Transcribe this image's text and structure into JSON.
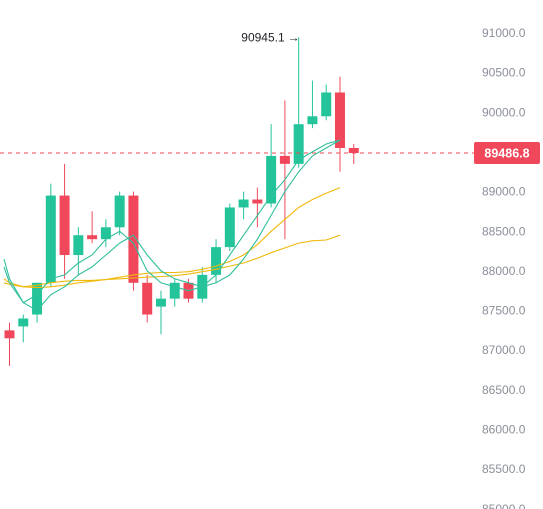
{
  "chart_data": {
    "type": "candlestick",
    "y_axis": {
      "position": "right",
      "ylim": [
        85000,
        91300
      ],
      "ticks": [
        "91000.0",
        "90500.0",
        "90000.0",
        "89500.0",
        "89000.0",
        "88500.0",
        "88000.0",
        "87500.0",
        "87000.0",
        "86500.0",
        "86000.0",
        "85500.0",
        "85000.0"
      ],
      "tick_values": [
        91000,
        90500,
        90000,
        89500,
        89000,
        88500,
        88000,
        87500,
        87000,
        86500,
        86000,
        85500,
        85000
      ]
    },
    "current_price": {
      "value": 89486.8,
      "label": "89486.8",
      "color": "#f0485a"
    },
    "high_marker": {
      "value": 90945.1,
      "label": "90945.1",
      "arrow": "→"
    },
    "colors": {
      "up": "#23c49a",
      "down": "#f0485a",
      "ma_fast": "#2fbf9b",
      "ma_slow": "#f0b90b"
    },
    "candles": [
      {
        "o": 87250,
        "h": 87350,
        "l": 86800,
        "c": 87150
      },
      {
        "o": 87300,
        "h": 87450,
        "l": 87100,
        "c": 87400
      },
      {
        "o": 87450,
        "h": 87850,
        "l": 87350,
        "c": 87850
      },
      {
        "o": 87850,
        "h": 89100,
        "l": 87800,
        "c": 88950
      },
      {
        "o": 88950,
        "h": 89350,
        "l": 87900,
        "c": 88200
      },
      {
        "o": 88200,
        "h": 88550,
        "l": 87950,
        "c": 88450
      },
      {
        "o": 88450,
        "h": 88750,
        "l": 88350,
        "c": 88400
      },
      {
        "o": 88400,
        "h": 88650,
        "l": 88300,
        "c": 88550
      },
      {
        "o": 88550,
        "h": 89000,
        "l": 88450,
        "c": 88950
      },
      {
        "o": 88950,
        "h": 89000,
        "l": 87750,
        "c": 87850
      },
      {
        "o": 87850,
        "h": 87950,
        "l": 87350,
        "c": 87450
      },
      {
        "o": 87550,
        "h": 87750,
        "l": 87200,
        "c": 87650
      },
      {
        "o": 87650,
        "h": 87900,
        "l": 87550,
        "c": 87850
      },
      {
        "o": 87850,
        "h": 87900,
        "l": 87600,
        "c": 87650
      },
      {
        "o": 87650,
        "h": 88050,
        "l": 87600,
        "c": 87950
      },
      {
        "o": 87950,
        "h": 88400,
        "l": 87850,
        "c": 88300
      },
      {
        "o": 88300,
        "h": 88850,
        "l": 88250,
        "c": 88800
      },
      {
        "o": 88800,
        "h": 89000,
        "l": 88650,
        "c": 88900
      },
      {
        "o": 88900,
        "h": 89050,
        "l": 88550,
        "c": 88850
      },
      {
        "o": 88850,
        "h": 89850,
        "l": 88800,
        "c": 89450
      },
      {
        "o": 89450,
        "h": 90150,
        "l": 88400,
        "c": 89350
      },
      {
        "o": 89350,
        "h": 90945.1,
        "l": 89300,
        "c": 89850
      },
      {
        "o": 89850,
        "h": 90400,
        "l": 89800,
        "c": 89950
      },
      {
        "o": 89950,
        "h": 90350,
        "l": 89900,
        "c": 90250
      },
      {
        "o": 90250,
        "h": 90450,
        "l": 89250,
        "c": 89550
      },
      {
        "o": 89550,
        "h": 89600,
        "l": 89350,
        "c": 89486.8
      }
    ],
    "ma_fast": {
      "points": [
        [
          -0.4,
          88050
        ],
        [
          0,
          87850
        ],
        [
          1,
          87600
        ],
        [
          2,
          87700
        ],
        [
          3,
          87900
        ],
        [
          4,
          87950
        ],
        [
          5,
          88100
        ],
        [
          6,
          88200
        ],
        [
          7,
          88400
        ],
        [
          8,
          88500
        ],
        [
          9,
          88350
        ],
        [
          10,
          88000
        ],
        [
          11,
          87850
        ],
        [
          12,
          87800
        ],
        [
          13,
          87750
        ],
        [
          14,
          87800
        ],
        [
          15,
          87950
        ],
        [
          16,
          88200
        ],
        [
          17,
          88450
        ],
        [
          18,
          88700
        ],
        [
          19,
          88950
        ],
        [
          20,
          89150
        ],
        [
          21,
          89400
        ],
        [
          22,
          89500
        ],
        [
          23,
          89600
        ],
        [
          24,
          89650
        ]
      ]
    },
    "ma_fast2": {
      "points": [
        [
          -0.4,
          88150
        ],
        [
          0,
          87900
        ],
        [
          1,
          87600
        ],
        [
          2,
          87500
        ],
        [
          3,
          87700
        ],
        [
          4,
          87800
        ],
        [
          5,
          87950
        ],
        [
          6,
          88050
        ],
        [
          7,
          88200
        ],
        [
          8,
          88350
        ],
        [
          9,
          88450
        ],
        [
          10,
          88200
        ],
        [
          11,
          88000
        ],
        [
          12,
          87900
        ],
        [
          13,
          87850
        ],
        [
          14,
          87800
        ],
        [
          15,
          87850
        ],
        [
          16,
          87950
        ],
        [
          17,
          88150
        ],
        [
          18,
          88400
        ],
        [
          19,
          88700
        ],
        [
          20,
          89000
        ],
        [
          21,
          89250
        ],
        [
          22,
          89450
        ],
        [
          23,
          89550
        ],
        [
          24,
          89650
        ]
      ]
    },
    "ma_slow": {
      "points": [
        [
          -0.4,
          87900
        ],
        [
          0,
          87850
        ],
        [
          1,
          87800
        ],
        [
          2,
          87820
        ],
        [
          3,
          87850
        ],
        [
          4,
          87870
        ],
        [
          5,
          87880
        ],
        [
          6,
          87880
        ],
        [
          7,
          87890
        ],
        [
          8,
          87920
        ],
        [
          9,
          87950
        ],
        [
          10,
          87970
        ],
        [
          11,
          87980
        ],
        [
          12,
          87980
        ],
        [
          13,
          87990
        ],
        [
          14,
          88020
        ],
        [
          15,
          88060
        ],
        [
          16,
          88120
        ],
        [
          17,
          88200
        ],
        [
          18,
          88330
        ],
        [
          19,
          88500
        ],
        [
          20,
          88650
        ],
        [
          21,
          88800
        ],
        [
          22,
          88900
        ],
        [
          23,
          88980
        ],
        [
          24,
          89050
        ]
      ]
    },
    "ma_slow2": {
      "points": [
        [
          -0.4,
          87850
        ],
        [
          0,
          87830
        ],
        [
          1,
          87800
        ],
        [
          2,
          87790
        ],
        [
          3,
          87800
        ],
        [
          4,
          87820
        ],
        [
          5,
          87850
        ],
        [
          6,
          87870
        ],
        [
          7,
          87890
        ],
        [
          8,
          87900
        ],
        [
          9,
          87910
        ],
        [
          10,
          87920
        ],
        [
          11,
          87930
        ],
        [
          12,
          87940
        ],
        [
          13,
          87960
        ],
        [
          14,
          87990
        ],
        [
          15,
          88020
        ],
        [
          16,
          88060
        ],
        [
          17,
          88100
        ],
        [
          18,
          88160
        ],
        [
          19,
          88230
        ],
        [
          20,
          88290
        ],
        [
          21,
          88350
        ],
        [
          22,
          88380
        ],
        [
          23,
          88390
        ],
        [
          24,
          88450
        ]
      ]
    }
  }
}
